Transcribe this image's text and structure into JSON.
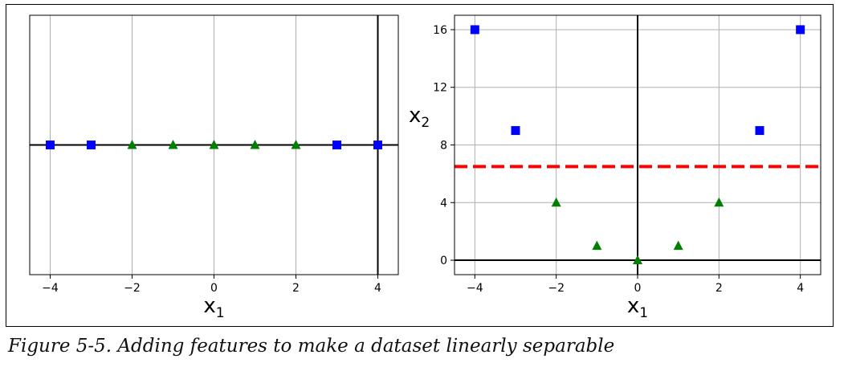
{
  "caption": "Figure 5-5. Adding features to make a dataset linearly separable",
  "colors": {
    "class_a": "#0000ff",
    "class_b": "#008000",
    "boundary": "#ff0000",
    "grid": "#b0b0b0",
    "axis": "#000000"
  },
  "chart_data": [
    {
      "type": "scatter",
      "xlabel": "x1",
      "ylabel": "",
      "xlim": [
        -4.5,
        4.5
      ],
      "ylim": [
        -0.2,
        0.2
      ],
      "xticks": [
        -4,
        -2,
        0,
        2,
        4
      ],
      "xtick_labels": [
        "−4",
        "−2",
        "0",
        "2",
        "4"
      ],
      "yticks": [],
      "grid": true,
      "series": [
        {
          "marker": "square",
          "color": "#0000ff",
          "x": [
            -4,
            -3,
            3,
            4
          ],
          "y": [
            0,
            0,
            0,
            0
          ]
        },
        {
          "marker": "triangle",
          "color": "#008000",
          "x": [
            -2,
            -1,
            0,
            1,
            2
          ],
          "y": [
            0,
            0,
            0,
            0,
            0
          ]
        }
      ],
      "hlines": [
        {
          "y": 0,
          "color": "#000000",
          "style": "solid"
        }
      ],
      "vlines": [
        {
          "x": 4,
          "color": "#000000",
          "style": "solid"
        }
      ]
    },
    {
      "type": "scatter",
      "xlabel": "x1",
      "ylabel": "x2",
      "xlim": [
        -4.5,
        4.5
      ],
      "ylim": [
        -1,
        17
      ],
      "xticks": [
        -4,
        -2,
        0,
        2,
        4
      ],
      "xtick_labels": [
        "−4",
        "−2",
        "0",
        "2",
        "4"
      ],
      "yticks": [
        0,
        4,
        8,
        12,
        16
      ],
      "ytick_labels": [
        "0",
        "4",
        "8",
        "12",
        "16"
      ],
      "grid": true,
      "series": [
        {
          "marker": "square",
          "color": "#0000ff",
          "x": [
            -4,
            -3,
            3,
            4
          ],
          "y": [
            16,
            9,
            9,
            16
          ]
        },
        {
          "marker": "triangle",
          "color": "#008000",
          "x": [
            -2,
            -1,
            0,
            1,
            2
          ],
          "y": [
            4,
            1,
            0,
            1,
            4
          ]
        }
      ],
      "hlines": [
        {
          "y": 0,
          "color": "#000000",
          "style": "solid"
        },
        {
          "y": 6.5,
          "color": "#ff0000",
          "style": "dashed"
        }
      ],
      "vlines": [
        {
          "x": 0,
          "color": "#000000",
          "style": "solid"
        }
      ]
    }
  ]
}
